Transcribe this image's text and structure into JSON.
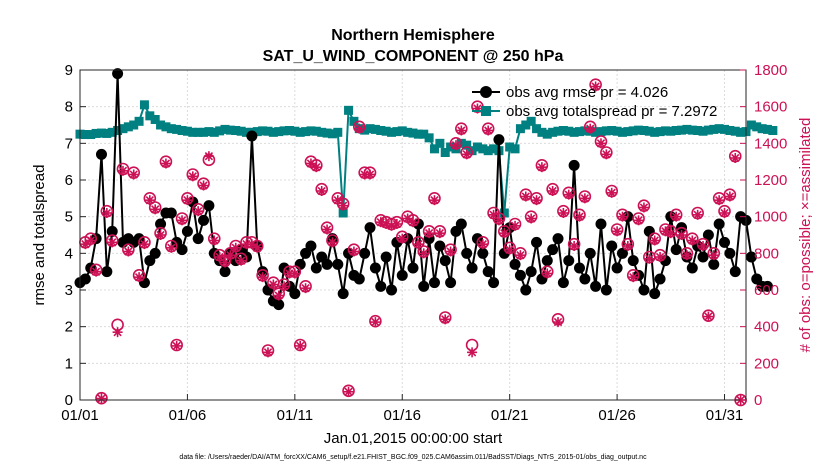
{
  "chart_data": {
    "type": "line",
    "title": "Northern Hemisphere",
    "subtitle": "SAT_U_WIND_COMPONENT @ 250 hPa",
    "xlabel": "Jan.01,2015 00:00:00 start",
    "ylabel": "rmse and totalspread",
    "ylabel_right": "# of obs: o=possible; ×=assimilated",
    "footer": "data file: /Users/raeder/DAI/ATM_forcXX/CAM6_setup/f.e21.FHIST_BGC.f09_025.CAM6assim.011/BadSST/Diags_NTrS_2015-01/obs_diag_output.nc",
    "xlim": [
      1,
      32
    ],
    "ylim": [
      0,
      9
    ],
    "ylim_right": [
      0,
      1800
    ],
    "x_ticks": [
      1,
      6,
      11,
      16,
      21,
      26,
      31
    ],
    "x_tick_labels": [
      "01/01",
      "01/06",
      "01/11",
      "01/16",
      "01/21",
      "01/26",
      "01/31"
    ],
    "y_ticks": [
      "0",
      "1",
      "2",
      "3",
      "4",
      "5",
      "6",
      "7",
      "8",
      "9"
    ],
    "y_ticks_right": [
      "0",
      "200",
      "400",
      "600",
      "800",
      "1000",
      "1200",
      "1400",
      "1600",
      "1800"
    ],
    "legend_location": "top-right",
    "colors": {
      "rmse": "#000000",
      "spread": "#008080",
      "obs": "#cc1155"
    },
    "series": [
      {
        "name": "obs avg rmse pr = 4.026",
        "color": "#000000",
        "x_start": 1.0,
        "x_step": 0.25,
        "values": [
          3.2,
          3.3,
          3.6,
          4.4,
          6.7,
          3.5,
          4.6,
          8.9,
          4.3,
          4.4,
          4.3,
          4.4,
          3.2,
          3.8,
          4.0,
          4.8,
          5.1,
          5.1,
          4.3,
          4.1,
          4.6,
          5.4,
          4.4,
          4.9,
          5.3,
          4.0,
          3.8,
          3.5,
          4.0,
          3.8,
          4.1,
          3.9,
          7.2,
          4.2,
          3.5,
          3.0,
          2.7,
          2.6,
          3.6,
          3.1,
          2.9,
          3.7,
          4.0,
          4.2,
          3.6,
          3.9,
          3.7,
          4.4,
          3.7,
          2.9,
          4.0,
          3.4,
          3.3,
          4.0,
          4.7,
          3.6,
          3.1,
          3.9,
          3.0,
          4.3,
          3.4,
          4.4,
          3.6,
          4.8,
          3.1,
          4.4,
          3.2,
          4.2,
          3.8,
          3.2,
          4.6,
          4.8,
          4.0,
          3.6,
          4.4,
          4.0,
          3.5,
          3.2,
          7.1,
          4.0,
          4.7,
          3.7,
          3.4,
          3.0,
          3.5,
          4.3,
          3.3,
          3.8,
          4.1,
          4.4,
          3.2,
          3.8,
          6.4,
          3.6,
          3.3,
          4.0,
          3.1,
          4.8,
          3.0,
          4.2,
          3.6,
          4.0,
          5.0,
          3.8,
          3.4,
          3.0,
          4.6,
          2.9,
          3.3,
          3.8,
          5.0,
          4.1,
          4.7,
          3.9,
          3.6,
          4.2,
          3.9,
          4.5,
          3.7,
          4.8,
          4.3,
          4.0,
          3.5,
          5.0,
          4.9,
          3.9,
          3.3,
          3.1,
          3.1
        ]
      },
      {
        "name": "obs avg totalspread pr = 7.2972",
        "color": "#008080",
        "x_start": 1.0,
        "x_step": 0.25,
        "values": [
          7.25,
          7.24,
          7.24,
          7.27,
          7.28,
          7.27,
          7.3,
          7.35,
          7.4,
          7.45,
          7.5,
          7.6,
          8.05,
          7.75,
          7.65,
          7.5,
          7.45,
          7.4,
          7.38,
          7.35,
          7.33,
          7.3,
          7.3,
          7.3,
          7.32,
          7.3,
          7.34,
          7.38,
          7.36,
          7.35,
          7.33,
          7.3,
          7.3,
          7.32,
          7.34,
          7.33,
          7.3,
          7.32,
          7.34,
          7.35,
          7.33,
          7.3,
          7.32,
          7.34,
          7.33,
          7.3,
          7.28,
          7.26,
          7.3,
          5.1,
          7.9,
          7.6,
          7.4,
          7.36,
          7.4,
          7.38,
          7.35,
          7.33,
          7.3,
          7.32,
          7.34,
          7.3,
          7.28,
          7.25,
          7.25,
          7.15,
          6.85,
          7.0,
          6.75,
          6.9,
          6.85,
          7.0,
          6.95,
          6.8,
          6.9,
          6.85,
          6.8,
          6.85,
          6.8,
          5.1,
          6.9,
          6.85,
          7.4,
          7.5,
          7.6,
          7.4,
          7.3,
          7.25,
          7.3,
          7.33,
          7.35,
          7.33,
          7.3,
          7.32,
          7.34,
          7.33,
          7.3,
          7.32,
          7.34,
          7.35,
          7.33,
          7.3,
          7.32,
          7.34,
          7.36,
          7.35,
          7.33,
          7.3,
          7.32,
          7.34,
          7.33,
          7.35,
          7.36,
          7.38,
          7.36,
          7.35,
          7.33,
          7.36,
          7.38,
          7.4,
          7.38,
          7.35,
          7.33,
          7.3,
          7.32,
          7.5,
          7.45,
          7.4,
          7.38,
          7.35
        ]
      }
    ],
    "obs_possible": [
      {
        "x": 1.25,
        "y": 860
      },
      {
        "x": 1.5,
        "y": 880
      },
      {
        "x": 1.75,
        "y": 710
      },
      {
        "x": 2.0,
        "y": 10
      },
      {
        "x": 2.25,
        "y": 1030
      },
      {
        "x": 2.5,
        "y": 870
      },
      {
        "x": 2.75,
        "y": 410
      },
      {
        "x": 3.0,
        "y": 1260
      },
      {
        "x": 3.25,
        "y": 820
      },
      {
        "x": 3.5,
        "y": 1240
      },
      {
        "x": 3.75,
        "y": 680
      },
      {
        "x": 4.0,
        "y": 860
      },
      {
        "x": 4.25,
        "y": 1100
      },
      {
        "x": 4.5,
        "y": 1050
      },
      {
        "x": 4.75,
        "y": 910
      },
      {
        "x": 5.0,
        "y": 1300
      },
      {
        "x": 5.25,
        "y": 840
      },
      {
        "x": 5.5,
        "y": 300
      },
      {
        "x": 5.75,
        "y": 990
      },
      {
        "x": 6.0,
        "y": 1100
      },
      {
        "x": 6.25,
        "y": 1230
      },
      {
        "x": 6.5,
        "y": 1040
      },
      {
        "x": 6.75,
        "y": 1180
      },
      {
        "x": 7.0,
        "y": 1310
      },
      {
        "x": 7.25,
        "y": 880
      },
      {
        "x": 7.5,
        "y": 790
      },
      {
        "x": 7.75,
        "y": 760
      },
      {
        "x": 8.0,
        "y": 800
      },
      {
        "x": 8.25,
        "y": 840
      },
      {
        "x": 8.5,
        "y": 770
      },
      {
        "x": 8.75,
        "y": 860
      },
      {
        "x": 9.0,
        "y": 860
      },
      {
        "x": 9.25,
        "y": 840
      },
      {
        "x": 9.5,
        "y": 680
      },
      {
        "x": 9.75,
        "y": 270
      },
      {
        "x": 10.0,
        "y": 640
      },
      {
        "x": 10.25,
        "y": 580
      },
      {
        "x": 10.5,
        "y": 630
      },
      {
        "x": 10.75,
        "y": 700
      },
      {
        "x": 11.0,
        "y": 700
      },
      {
        "x": 11.25,
        "y": 300
      },
      {
        "x": 11.5,
        "y": 620
      },
      {
        "x": 11.75,
        "y": 1300
      },
      {
        "x": 12.0,
        "y": 1280
      },
      {
        "x": 12.25,
        "y": 1150
      },
      {
        "x": 12.5,
        "y": 940
      },
      {
        "x": 12.75,
        "y": 870
      },
      {
        "x": 13.0,
        "y": 1100
      },
      {
        "x": 13.25,
        "y": 1070
      },
      {
        "x": 13.5,
        "y": 50
      },
      {
        "x": 13.75,
        "y": 820
      },
      {
        "x": 14.0,
        "y": 1490
      },
      {
        "x": 14.25,
        "y": 1240
      },
      {
        "x": 14.5,
        "y": 1240
      },
      {
        "x": 14.75,
        "y": 430
      },
      {
        "x": 15.0,
        "y": 980
      },
      {
        "x": 15.25,
        "y": 970
      },
      {
        "x": 15.5,
        "y": 960
      },
      {
        "x": 15.75,
        "y": 970
      },
      {
        "x": 16.0,
        "y": 890
      },
      {
        "x": 16.25,
        "y": 1000
      },
      {
        "x": 16.5,
        "y": 980
      },
      {
        "x": 16.75,
        "y": 860
      },
      {
        "x": 17.0,
        "y": 810
      },
      {
        "x": 17.25,
        "y": 920
      },
      {
        "x": 17.5,
        "y": 1100
      },
      {
        "x": 17.75,
        "y": 920
      },
      {
        "x": 18.0,
        "y": 450
      },
      {
        "x": 18.25,
        "y": 820
      },
      {
        "x": 18.5,
        "y": 1400
      },
      {
        "x": 18.75,
        "y": 1480
      },
      {
        "x": 19.0,
        "y": 1350
      },
      {
        "x": 19.25,
        "y": 300
      },
      {
        "x": 19.5,
        "y": 1600
      },
      {
        "x": 19.75,
        "y": 860
      },
      {
        "x": 20.0,
        "y": 1480
      },
      {
        "x": 20.25,
        "y": 1020
      },
      {
        "x": 20.5,
        "y": 990
      },
      {
        "x": 20.75,
        "y": 920
      },
      {
        "x": 21.0,
        "y": 830
      },
      {
        "x": 21.25,
        "y": 960
      },
      {
        "x": 21.5,
        "y": 800
      },
      {
        "x": 21.75,
        "y": 1120
      },
      {
        "x": 22.0,
        "y": 1000
      },
      {
        "x": 22.25,
        "y": 1100
      },
      {
        "x": 22.5,
        "y": 1280
      },
      {
        "x": 22.75,
        "y": 700
      },
      {
        "x": 23.0,
        "y": 1150
      },
      {
        "x": 23.25,
        "y": 440
      },
      {
        "x": 23.5,
        "y": 1030
      },
      {
        "x": 23.75,
        "y": 1130
      },
      {
        "x": 24.0,
        "y": 850
      },
      {
        "x": 24.25,
        "y": 1010
      },
      {
        "x": 24.5,
        "y": 1110
      },
      {
        "x": 24.75,
        "y": 1490
      },
      {
        "x": 25.0,
        "y": 1720
      },
      {
        "x": 25.25,
        "y": 1410
      },
      {
        "x": 25.5,
        "y": 1350
      },
      {
        "x": 25.75,
        "y": 1140
      },
      {
        "x": 26.0,
        "y": 930
      },
      {
        "x": 26.25,
        "y": 1010
      },
      {
        "x": 26.5,
        "y": 850
      },
      {
        "x": 26.75,
        "y": 680
      },
      {
        "x": 27.0,
        "y": 990
      },
      {
        "x": 27.25,
        "y": 1060
      },
      {
        "x": 27.5,
        "y": 780
      },
      {
        "x": 27.75,
        "y": 880
      },
      {
        "x": 28.0,
        "y": 790
      },
      {
        "x": 28.25,
        "y": 930
      },
      {
        "x": 28.5,
        "y": 920
      },
      {
        "x": 28.75,
        "y": 1010
      },
      {
        "x": 29.0,
        "y": 910
      },
      {
        "x": 29.25,
        "y": 800
      },
      {
        "x": 29.5,
        "y": 880
      },
      {
        "x": 29.75,
        "y": 1020
      },
      {
        "x": 30.0,
        "y": 850
      },
      {
        "x": 30.25,
        "y": 460
      },
      {
        "x": 30.5,
        "y": 800
      },
      {
        "x": 30.75,
        "y": 1100
      },
      {
        "x": 31.0,
        "y": 1030
      },
      {
        "x": 31.25,
        "y": 1120
      },
      {
        "x": 31.5,
        "y": 1330
      },
      {
        "x": 31.75,
        "y": 0
      }
    ],
    "obs_assimilated": [
      {
        "x": 1.25,
        "y": 850
      },
      {
        "x": 1.5,
        "y": 870
      },
      {
        "x": 1.75,
        "y": 700
      },
      {
        "x": 2.0,
        "y": 8
      },
      {
        "x": 2.25,
        "y": 1020
      },
      {
        "x": 2.5,
        "y": 860
      },
      {
        "x": 2.75,
        "y": 370
      },
      {
        "x": 3.0,
        "y": 1250
      },
      {
        "x": 3.25,
        "y": 810
      },
      {
        "x": 3.5,
        "y": 1230
      },
      {
        "x": 3.75,
        "y": 670
      },
      {
        "x": 4.0,
        "y": 850
      },
      {
        "x": 4.25,
        "y": 1090
      },
      {
        "x": 4.5,
        "y": 1040
      },
      {
        "x": 4.75,
        "y": 900
      },
      {
        "x": 5.0,
        "y": 1290
      },
      {
        "x": 5.25,
        "y": 830
      },
      {
        "x": 5.5,
        "y": 295
      },
      {
        "x": 5.75,
        "y": 980
      },
      {
        "x": 6.0,
        "y": 1090
      },
      {
        "x": 6.25,
        "y": 1220
      },
      {
        "x": 6.5,
        "y": 1030
      },
      {
        "x": 6.75,
        "y": 1170
      },
      {
        "x": 7.0,
        "y": 1330
      },
      {
        "x": 7.25,
        "y": 870
      },
      {
        "x": 7.5,
        "y": 780
      },
      {
        "x": 7.75,
        "y": 750
      },
      {
        "x": 8.0,
        "y": 790
      },
      {
        "x": 8.25,
        "y": 830
      },
      {
        "x": 8.5,
        "y": 760
      },
      {
        "x": 8.75,
        "y": 850
      },
      {
        "x": 9.0,
        "y": 850
      },
      {
        "x": 9.25,
        "y": 830
      },
      {
        "x": 9.5,
        "y": 670
      },
      {
        "x": 9.75,
        "y": 260
      },
      {
        "x": 10.0,
        "y": 630
      },
      {
        "x": 10.25,
        "y": 570
      },
      {
        "x": 10.5,
        "y": 620
      },
      {
        "x": 10.75,
        "y": 690
      },
      {
        "x": 11.0,
        "y": 690
      },
      {
        "x": 11.25,
        "y": 295
      },
      {
        "x": 11.5,
        "y": 610
      },
      {
        "x": 11.75,
        "y": 1290
      },
      {
        "x": 12.0,
        "y": 1270
      },
      {
        "x": 12.25,
        "y": 1140
      },
      {
        "x": 12.5,
        "y": 930
      },
      {
        "x": 12.75,
        "y": 860
      },
      {
        "x": 13.0,
        "y": 1090
      },
      {
        "x": 13.25,
        "y": 1060
      },
      {
        "x": 13.5,
        "y": 45
      },
      {
        "x": 13.75,
        "y": 810
      },
      {
        "x": 14.0,
        "y": 1480
      },
      {
        "x": 14.25,
        "y": 1230
      },
      {
        "x": 14.5,
        "y": 1230
      },
      {
        "x": 14.75,
        "y": 425
      },
      {
        "x": 15.0,
        "y": 970
      },
      {
        "x": 15.25,
        "y": 960
      },
      {
        "x": 15.5,
        "y": 950
      },
      {
        "x": 15.75,
        "y": 960
      },
      {
        "x": 16.0,
        "y": 880
      },
      {
        "x": 16.25,
        "y": 990
      },
      {
        "x": 16.5,
        "y": 970
      },
      {
        "x": 16.75,
        "y": 850
      },
      {
        "x": 17.0,
        "y": 800
      },
      {
        "x": 17.25,
        "y": 910
      },
      {
        "x": 17.5,
        "y": 1090
      },
      {
        "x": 17.75,
        "y": 910
      },
      {
        "x": 18.0,
        "y": 440
      },
      {
        "x": 18.25,
        "y": 810
      },
      {
        "x": 18.5,
        "y": 1390
      },
      {
        "x": 18.75,
        "y": 1470
      },
      {
        "x": 19.0,
        "y": 1340
      },
      {
        "x": 19.25,
        "y": 260
      },
      {
        "x": 19.5,
        "y": 1590
      },
      {
        "x": 19.75,
        "y": 850
      },
      {
        "x": 20.0,
        "y": 1470
      },
      {
        "x": 20.25,
        "y": 1010
      },
      {
        "x": 20.5,
        "y": 980
      },
      {
        "x": 20.75,
        "y": 910
      },
      {
        "x": 21.0,
        "y": 820
      },
      {
        "x": 21.25,
        "y": 950
      },
      {
        "x": 21.5,
        "y": 790
      },
      {
        "x": 21.75,
        "y": 1110
      },
      {
        "x": 22.0,
        "y": 990
      },
      {
        "x": 22.25,
        "y": 1090
      },
      {
        "x": 22.5,
        "y": 1270
      },
      {
        "x": 22.75,
        "y": 690
      },
      {
        "x": 23.0,
        "y": 1140
      },
      {
        "x": 23.25,
        "y": 425
      },
      {
        "x": 23.5,
        "y": 1020
      },
      {
        "x": 23.75,
        "y": 1120
      },
      {
        "x": 24.0,
        "y": 840
      },
      {
        "x": 24.25,
        "y": 1000
      },
      {
        "x": 24.5,
        "y": 1100
      },
      {
        "x": 24.75,
        "y": 1480
      },
      {
        "x": 25.0,
        "y": 1710
      },
      {
        "x": 25.25,
        "y": 1400
      },
      {
        "x": 25.5,
        "y": 1340
      },
      {
        "x": 25.75,
        "y": 1130
      },
      {
        "x": 26.0,
        "y": 920
      },
      {
        "x": 26.25,
        "y": 1000
      },
      {
        "x": 26.5,
        "y": 840
      },
      {
        "x": 26.75,
        "y": 670
      },
      {
        "x": 27.0,
        "y": 980
      },
      {
        "x": 27.25,
        "y": 1050
      },
      {
        "x": 27.5,
        "y": 770
      },
      {
        "x": 27.75,
        "y": 870
      },
      {
        "x": 28.0,
        "y": 780
      },
      {
        "x": 28.25,
        "y": 920
      },
      {
        "x": 28.5,
        "y": 910
      },
      {
        "x": 28.75,
        "y": 1000
      },
      {
        "x": 29.0,
        "y": 900
      },
      {
        "x": 29.25,
        "y": 790
      },
      {
        "x": 29.5,
        "y": 870
      },
      {
        "x": 29.75,
        "y": 1010
      },
      {
        "x": 30.0,
        "y": 840
      },
      {
        "x": 30.25,
        "y": 455
      },
      {
        "x": 30.5,
        "y": 790
      },
      {
        "x": 30.75,
        "y": 1090
      },
      {
        "x": 31.0,
        "y": 1020
      },
      {
        "x": 31.25,
        "y": 1110
      },
      {
        "x": 31.5,
        "y": 1320
      },
      {
        "x": 31.75,
        "y": 0
      }
    ]
  }
}
